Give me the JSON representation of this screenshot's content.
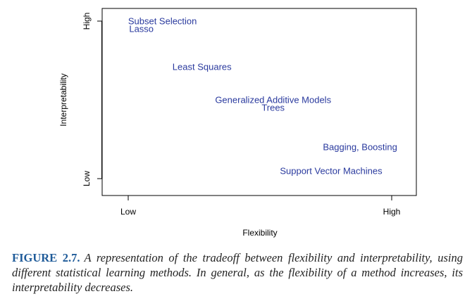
{
  "chart_data": {
    "type": "scatter",
    "title": "",
    "xlabel": "Flexibility",
    "ylabel": "Interpretability",
    "xlim": [
      0,
      1
    ],
    "ylim": [
      0,
      1
    ],
    "xticks": [
      {
        "value": 0,
        "label": "Low"
      },
      {
        "value": 1,
        "label": "High"
      }
    ],
    "yticks": [
      {
        "value": 0,
        "label": "Low"
      },
      {
        "value": 1,
        "label": "High"
      }
    ],
    "points": [
      {
        "label": "Subset Selection",
        "x": 0.13,
        "y": 1.0
      },
      {
        "label": "Lasso",
        "x": 0.05,
        "y": 0.95
      },
      {
        "label": "Least Squares",
        "x": 0.28,
        "y": 0.71
      },
      {
        "label": "Generalized Additive Models",
        "x": 0.55,
        "y": 0.5
      },
      {
        "label": "Trees",
        "x": 0.55,
        "y": 0.45
      },
      {
        "label": "Bagging, Boosting",
        "x": 0.88,
        "y": 0.2
      },
      {
        "label": "Support Vector Machines",
        "x": 0.77,
        "y": 0.05
      }
    ],
    "grid": false,
    "colors": {
      "point_label": "#2a3a9e",
      "axis": "#000000"
    }
  },
  "caption": {
    "label": "FIGURE 2.7.",
    "text": "A representation of the tradeoff between flexibility and interpretability, using different statistical learning methods. In general, as the flexibility of a method increases, its interpretability decreases."
  }
}
